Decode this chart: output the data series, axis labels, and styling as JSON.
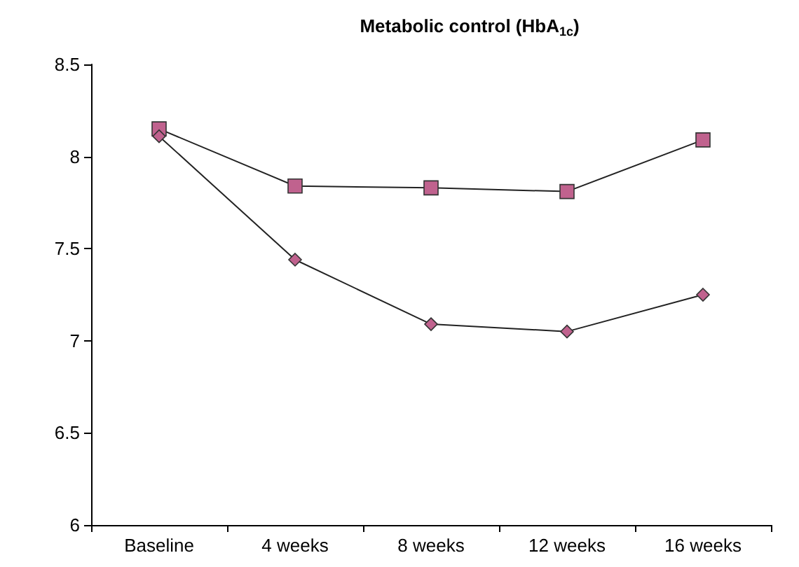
{
  "chart_data": {
    "type": "line",
    "title": "Metabolic control (HbA$_{1c}$)",
    "categories": [
      "Baseline",
      "4 weeks",
      "8 weeks",
      "12 weeks",
      "16 weeks"
    ],
    "series": [
      {
        "color": "#c0628e",
        "marker": "square",
        "values": [
          8.15,
          7.84,
          7.83,
          7.81,
          8.09
        ]
      },
      {
        "color": "#c0628e",
        "marker": "diamond",
        "values": [
          8.11,
          7.44,
          7.09,
          7.05,
          7.25
        ]
      }
    ],
    "ylim": [
      6,
      8.5
    ],
    "yticks": [
      6,
      6.5,
      7,
      7.5,
      8,
      8.5
    ],
    "grid": false,
    "line_style": "solid"
  }
}
